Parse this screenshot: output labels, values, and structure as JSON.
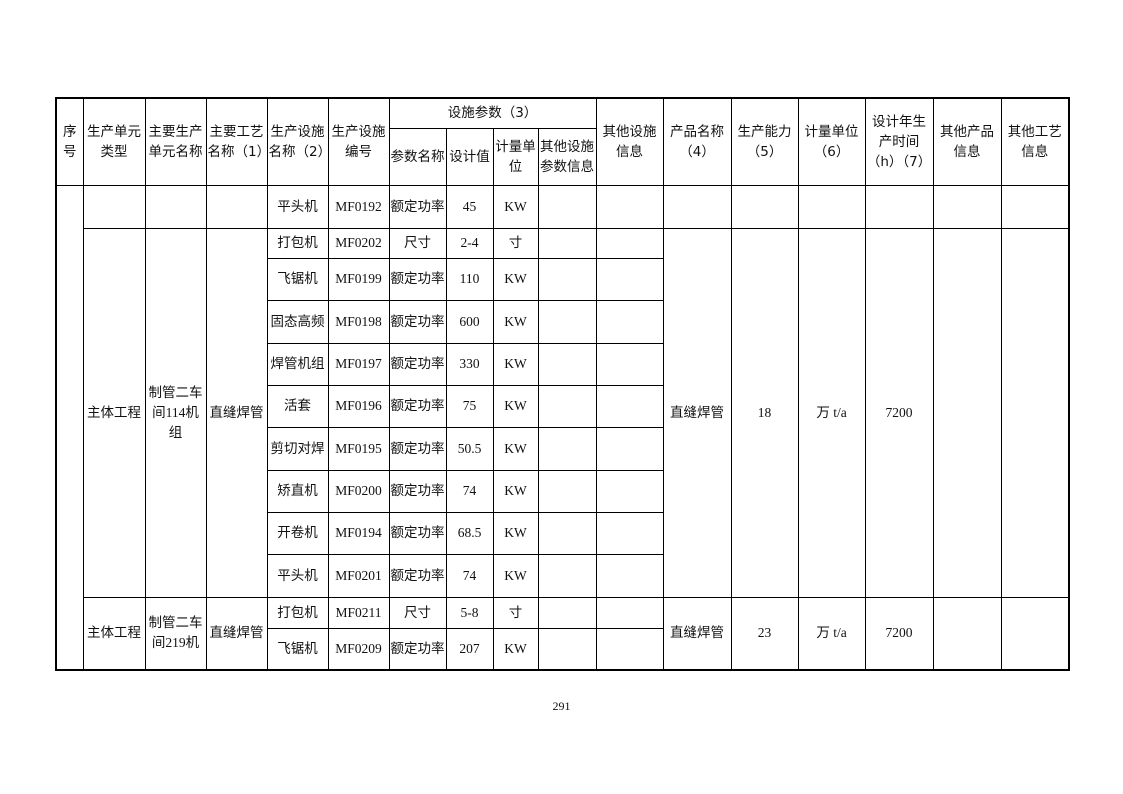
{
  "header": {
    "seq": "序号",
    "unit_type": "生产单元类型",
    "unit_name": "主要生产单元名称",
    "process_name": "主要工艺名称（1）",
    "facility_name": "生产设施名称（2）",
    "facility_code": "生产设施编号",
    "params_group": "设施参数（3）",
    "param_name": "参数名称",
    "design_value": "设计值",
    "param_unit": "计量单位",
    "other_param_info": "其他设施参数信息",
    "other_facility_info": "其他设施信息",
    "product_name": "产品名称（4）",
    "capacity": "生产能力（5）",
    "capacity_unit": "计量单位（6）",
    "design_hours": "设计年生产时间（h）（7）",
    "other_product_info": "其他产品信息",
    "other_process_info": "其他工艺信息"
  },
  "groups": [
    {
      "unit_type": "",
      "unit_name": "",
      "process_name": "",
      "product_name": "",
      "capacity": "",
      "capacity_unit": "",
      "design_hours": "",
      "other_product_info": "",
      "other_process_info": "",
      "separate_product_cells": true,
      "rows": [
        {
          "facility": "平头机",
          "code": "MF0192",
          "param": "额定功率",
          "value": "45",
          "unit": "KW"
        }
      ]
    },
    {
      "unit_type": "主体工程",
      "unit_name": "制管二车间114机组",
      "process_name": "直缝焊管",
      "product_name": "直缝焊管",
      "capacity": "18",
      "capacity_unit": "万 t/a",
      "design_hours": "7200",
      "other_product_info": "",
      "other_process_info": "",
      "rows": [
        {
          "facility": "打包机",
          "code": "MF0202",
          "param": "尺寸",
          "value": "2-4",
          "unit": "寸"
        },
        {
          "facility": "飞锯机",
          "code": "MF0199",
          "param": "额定功率",
          "value": "110",
          "unit": "KW"
        },
        {
          "facility": "固态高频",
          "code": "MF0198",
          "param": "额定功率",
          "value": "600",
          "unit": "KW"
        },
        {
          "facility": "焊管机组",
          "code": "MF0197",
          "param": "额定功率",
          "value": "330",
          "unit": "KW"
        },
        {
          "facility": "活套",
          "code": "MF0196",
          "param": "额定功率",
          "value": "75",
          "unit": "KW"
        },
        {
          "facility": "剪切对焊",
          "code": "MF0195",
          "param": "额定功率",
          "value": "50.5",
          "unit": "KW"
        },
        {
          "facility": "矫直机",
          "code": "MF0200",
          "param": "额定功率",
          "value": "74",
          "unit": "KW"
        },
        {
          "facility": "开卷机",
          "code": "MF0194",
          "param": "额定功率",
          "value": "68.5",
          "unit": "KW"
        },
        {
          "facility": "平头机",
          "code": "MF0201",
          "param": "额定功率",
          "value": "74",
          "unit": "KW"
        }
      ]
    },
    {
      "unit_type": "主体工程",
      "unit_name": "制管二车间219机",
      "process_name": "直缝焊管",
      "product_name": "直缝焊管",
      "capacity": "23",
      "capacity_unit": "万 t/a",
      "design_hours": "7200",
      "other_product_info": "",
      "other_process_info": "",
      "rows": [
        {
          "facility": "打包机",
          "code": "MF0211",
          "param": "尺寸",
          "value": "5-8",
          "unit": "寸"
        },
        {
          "facility": "飞锯机",
          "code": "MF0209",
          "param": "额定功率",
          "value": "207",
          "unit": "KW"
        }
      ]
    }
  ],
  "page_number": "291"
}
